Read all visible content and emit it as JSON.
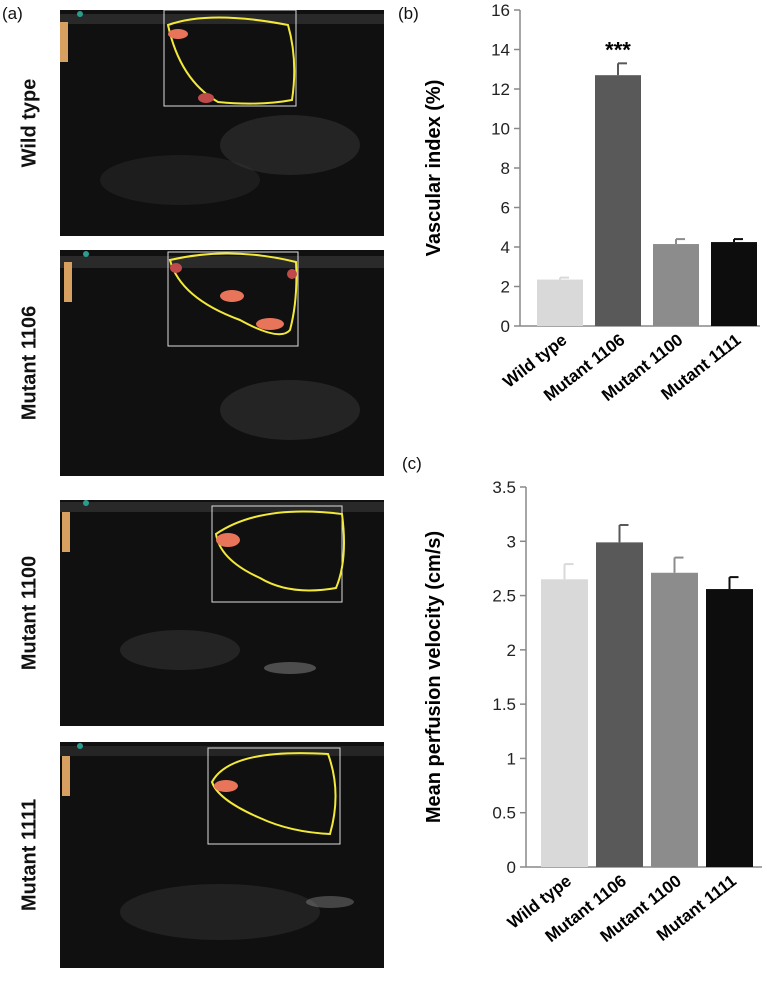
{
  "panels": {
    "a": "(a)",
    "b": "(b)",
    "c": "(c)"
  },
  "ultrasound": [
    {
      "label": "Wild type"
    },
    {
      "label": "Mutant 1106"
    },
    {
      "label": "Mutant 1100"
    },
    {
      "label": "Mutant 1111"
    }
  ],
  "colors": {
    "wild_type": "#d9d9d9",
    "mutant_1106": "#595959",
    "mutant_1100": "#8c8c8c",
    "mutant_1111": "#0d0d0d",
    "roi_outline": "#f2e93a",
    "doppler": "#e8745a"
  },
  "chart_data": [
    {
      "type": "bar",
      "categories": [
        "Wild type",
        "Mutant 1106",
        "Mutant 1100",
        "Mutant 1111"
      ],
      "values": [
        2.35,
        12.7,
        4.15,
        4.25
      ],
      "errors": [
        0.1,
        0.6,
        0.25,
        0.15
      ],
      "annotations": [
        "",
        "***",
        "",
        ""
      ],
      "title": "",
      "xlabel": "",
      "ylabel": "Vascular index (%)",
      "ylim": [
        0,
        16
      ],
      "yticks": [
        "0",
        "2",
        "4",
        "6",
        "8",
        "10",
        "12",
        "14",
        "16"
      ],
      "grid": false
    },
    {
      "type": "bar",
      "categories": [
        "Wild type",
        "Mutant 1106",
        "Mutant 1100",
        "Mutant 1111"
      ],
      "values": [
        2.65,
        2.99,
        2.71,
        2.56
      ],
      "errors": [
        0.14,
        0.16,
        0.14,
        0.11
      ],
      "annotations": [
        "",
        "",
        "",
        ""
      ],
      "title": "",
      "xlabel": "",
      "ylabel": "Mean perfusion velocity (cm/s)",
      "ylim": [
        0,
        3.5
      ],
      "yticks": [
        "0",
        "0.5",
        "1",
        "1.5",
        "2",
        "2.5",
        "3",
        "3.5"
      ],
      "grid": false
    }
  ]
}
